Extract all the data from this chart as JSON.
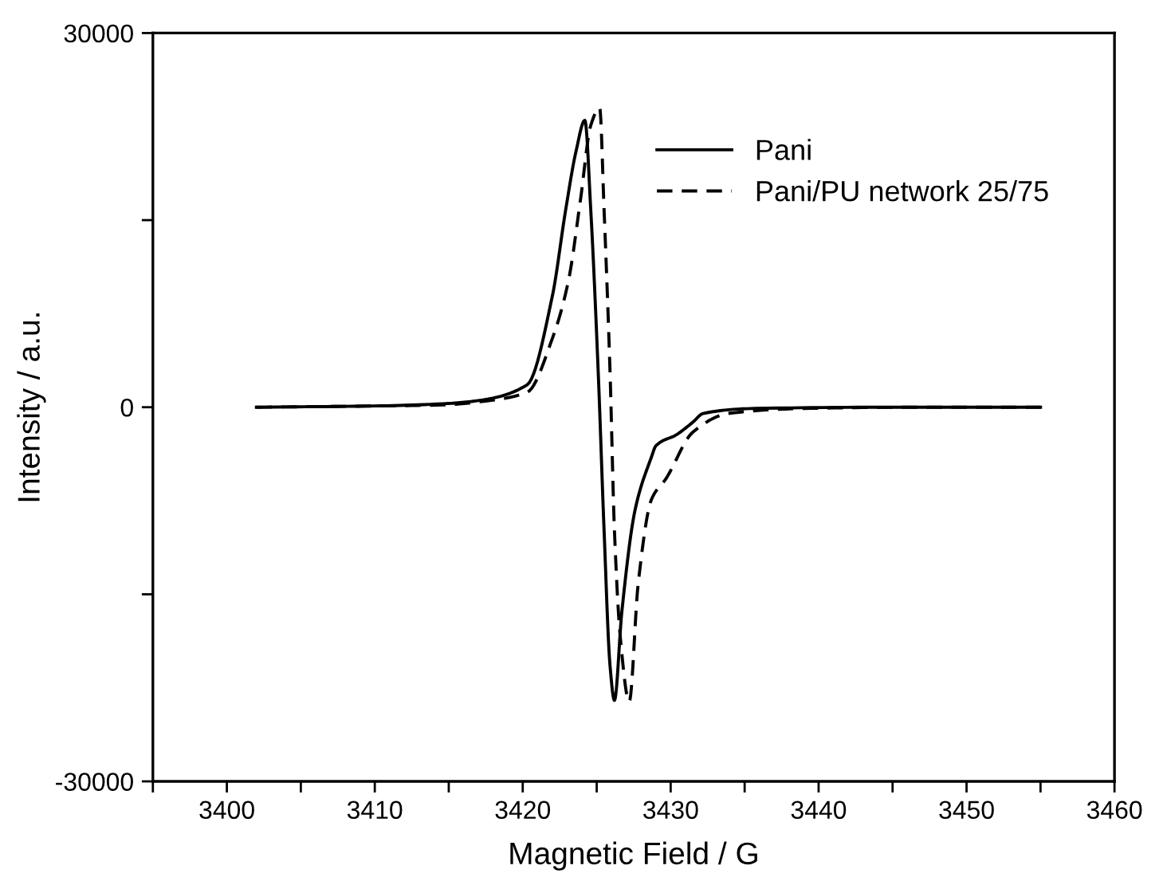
{
  "chart_data": {
    "type": "line",
    "xlabel": "Magnetic Field / G",
    "ylabel": "Intensity / a.u.",
    "xlim": [
      3395,
      3460
    ],
    "ylim": [
      -30000,
      30000
    ],
    "xticks": [
      {
        "value": 3395,
        "label": null
      },
      3400,
      {
        "value": 3405,
        "label": null
      },
      3410,
      {
        "value": 3415,
        "label": null
      },
      3420,
      {
        "value": 3425,
        "label": null
      },
      3430,
      {
        "value": 3435,
        "label": null
      },
      3440,
      {
        "value": 3445,
        "label": null
      },
      3450,
      {
        "value": 3455,
        "label": null
      },
      3460
    ],
    "yticks": [
      -30000,
      {
        "value": -15000,
        "label": null
      },
      0,
      {
        "value": 15000,
        "label": null
      },
      30000
    ],
    "grid": false,
    "legend": "top right",
    "marker": "none",
    "series": [
      {
        "name": "Pani",
        "color": "#000000",
        "line_style": "solid",
        "x": [
          3402,
          3410,
          3415,
          3416.8,
          3420.3,
          3422.0,
          3422.9,
          3423.6,
          3424.2,
          3424.6,
          3425.1,
          3425.5,
          3425.9,
          3426.2,
          3426.7,
          3427.6,
          3428.7,
          3429.0,
          3430.4,
          3431.5,
          3432.2,
          3435.7,
          3445,
          3455
        ],
        "values": [
          0,
          100,
          300,
          500,
          1800,
          8900,
          15800,
          20500,
          23000,
          15800,
          2900,
          -9900,
          -20700,
          -23500,
          -16400,
          -8200,
          -4000,
          -3100,
          -2200,
          -1200,
          -500,
          -100,
          0,
          0
        ]
      },
      {
        "name": "Pani/PU network 25/75",
        "color": "#000000",
        "line_style": "dashed",
        "x": [
          3402,
          3410,
          3415,
          3416.8,
          3420.3,
          3422.0,
          3423.1,
          3423.9,
          3424.6,
          3425.2,
          3425.5,
          3425.9,
          3426.2,
          3426.6,
          3427.2,
          3427.8,
          3428.7,
          3429.7,
          3431.5,
          3433.9,
          3439.1,
          3447,
          3455
        ],
        "values": [
          0,
          100,
          200,
          400,
          1200,
          5500,
          10200,
          16600,
          22600,
          24000,
          15800,
          2900,
          -9900,
          -18500,
          -23600,
          -14200,
          -7400,
          -5700,
          -2000,
          -500,
          -100,
          0,
          0
        ]
      }
    ]
  }
}
